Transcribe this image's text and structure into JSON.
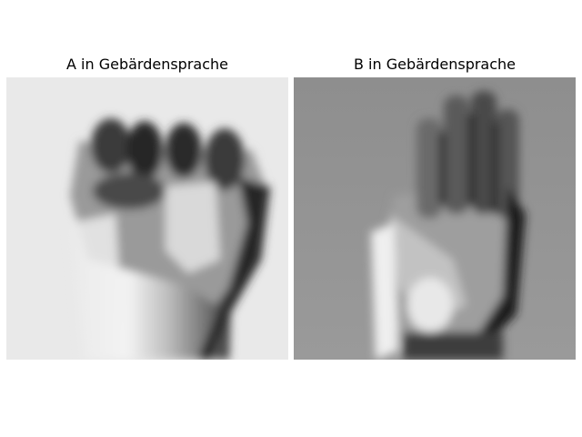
{
  "panels": [
    {
      "title": "A in Gebärdensprache",
      "subject": "hand-sign-letter-a"
    },
    {
      "title": "B in Gebärdensprache",
      "subject": "hand-sign-letter-b"
    }
  ]
}
